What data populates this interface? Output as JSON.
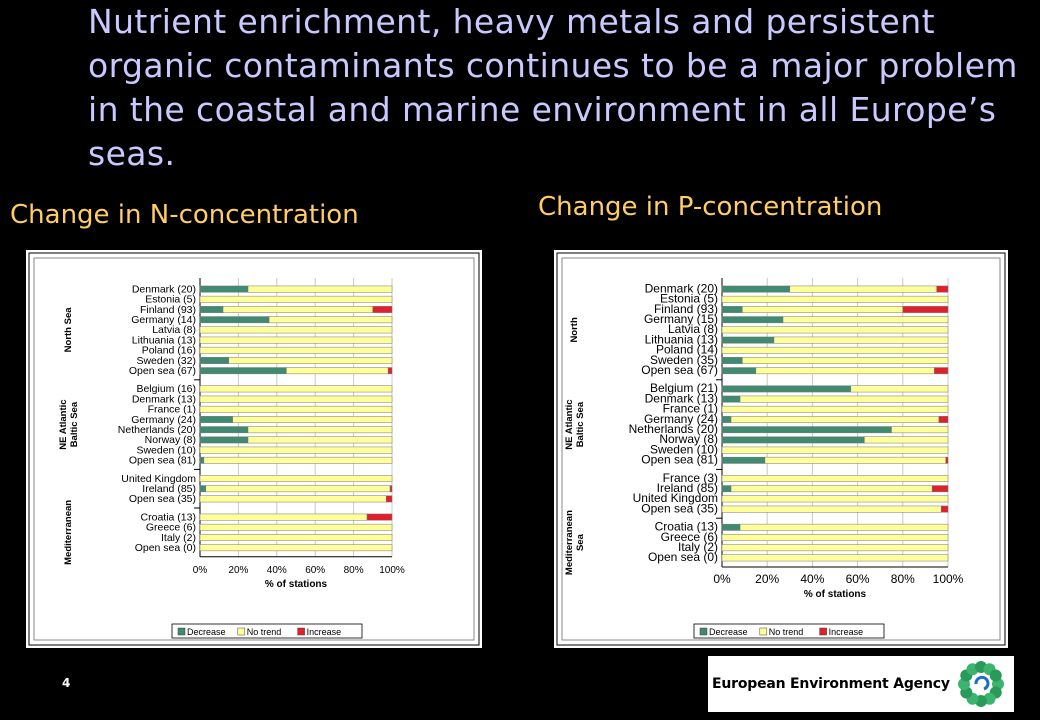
{
  "headline": "Nutrient enrichment, heavy metals and persistent organic contaminants continues to be a major problem in the coastal and marine environment in all Europe’s seas.",
  "subtitles": {
    "n": "Change in N-concentration",
    "p": "Change in P-concentration"
  },
  "page_number": "4",
  "logo": {
    "text": "European Environment Agency",
    "icon": "eea-star-logo-icon"
  },
  "colors": {
    "decrease": "#3f8a70",
    "no_trend": "#ffff99",
    "increase": "#e0202a",
    "title": "#c9c9ff",
    "subtitle": "#ffcc66"
  },
  "chart_data": [
    {
      "type": "bar",
      "orientation": "horizontal-stacked-100",
      "xlabel": "% of stations",
      "xticks": [
        "0%",
        "20%",
        "40%",
        "60%",
        "80%",
        "100%"
      ],
      "xlim": [
        0,
        100
      ],
      "legend": {
        "position": "bottom",
        "entries": [
          "Decrease",
          "No trend",
          "Increase"
        ]
      },
      "groups": [
        {
          "name": "North Sea",
          "rows": [
            {
              "label": "Denmark (20)",
              "decrease": 25,
              "no_trend": 75,
              "increase": 0
            },
            {
              "label": "Estonia (5)",
              "decrease": 0,
              "no_trend": 100,
              "increase": 0
            },
            {
              "label": "Finland (93)",
              "decrease": 12,
              "no_trend": 78,
              "increase": 10
            },
            {
              "label": "Germany (14)",
              "decrease": 36,
              "no_trend": 64,
              "increase": 0
            },
            {
              "label": "Latvia (8)",
              "decrease": 0,
              "no_trend": 100,
              "increase": 0
            },
            {
              "label": "Lithuania (13)",
              "decrease": 0,
              "no_trend": 100,
              "increase": 0
            },
            {
              "label": "Poland (16)",
              "decrease": 0,
              "no_trend": 100,
              "increase": 0
            },
            {
              "label": "Sweden (32)",
              "decrease": 15,
              "no_trend": 85,
              "increase": 0
            },
            {
              "label": "Open sea (67)",
              "decrease": 45,
              "no_trend": 53,
              "increase": 2
            }
          ]
        },
        {
          "name": "NE Atlantic Baltic Sea",
          "rows": [
            {
              "label": "Belgium (16)",
              "decrease": 0,
              "no_trend": 100,
              "increase": 0
            },
            {
              "label": "Denmark (13)",
              "decrease": 0,
              "no_trend": 100,
              "increase": 0
            },
            {
              "label": "France (1)",
              "decrease": 0,
              "no_trend": 100,
              "increase": 0
            },
            {
              "label": "Germany (24)",
              "decrease": 17,
              "no_trend": 83,
              "increase": 0
            },
            {
              "label": "Netherlands (20)",
              "decrease": 25,
              "no_trend": 75,
              "increase": 0
            },
            {
              "label": "Norway (8)",
              "decrease": 25,
              "no_trend": 75,
              "increase": 0
            },
            {
              "label": "Sweden (10)",
              "decrease": 0,
              "no_trend": 100,
              "increase": 0
            },
            {
              "label": "Open sea (81)",
              "decrease": 2,
              "no_trend": 98,
              "increase": 0
            }
          ]
        },
        {
          "name": "",
          "rows": [
            {
              "label": "United Kingdom",
              "decrease": 0,
              "no_trend": 100,
              "increase": 0
            },
            {
              "label": "Ireland (85)",
              "decrease": 3,
              "no_trend": 96,
              "increase": 1
            },
            {
              "label": "Open sea (35)",
              "decrease": 0,
              "no_trend": 97,
              "increase": 3
            }
          ]
        },
        {
          "name": "Mediterranean",
          "rows": [
            {
              "label": "Croatia (13)",
              "decrease": 0,
              "no_trend": 87,
              "increase": 13
            },
            {
              "label": "Greece (6)",
              "decrease": 0,
              "no_trend": 100,
              "increase": 0
            },
            {
              "label": "Italy (2)",
              "decrease": 0,
              "no_trend": 100,
              "increase": 0
            },
            {
              "label": "Open sea (0)",
              "decrease": 0,
              "no_trend": 100,
              "increase": 0
            }
          ]
        }
      ]
    },
    {
      "type": "bar",
      "orientation": "horizontal-stacked-100",
      "xlabel": "% of stations",
      "xticks": [
        "0%",
        "20%",
        "40%",
        "60%",
        "80%",
        "100%"
      ],
      "xlim": [
        0,
        100
      ],
      "legend": {
        "position": "bottom",
        "entries": [
          "Decrease",
          "No trend",
          "Increase"
        ]
      },
      "groups": [
        {
          "name": "North",
          "rows": [
            {
              "label": "Denmark (20)",
              "decrease": 30,
              "no_trend": 65,
              "increase": 5
            },
            {
              "label": "Estonia (5)",
              "decrease": 0,
              "no_trend": 100,
              "increase": 0
            },
            {
              "label": "Finland (93)",
              "decrease": 9,
              "no_trend": 71,
              "increase": 20
            },
            {
              "label": "Germany (15)",
              "decrease": 27,
              "no_trend": 73,
              "increase": 0
            },
            {
              "label": "Latvia (8)",
              "decrease": 0,
              "no_trend": 100,
              "increase": 0
            },
            {
              "label": "Lithuania (13)",
              "decrease": 23,
              "no_trend": 77,
              "increase": 0
            },
            {
              "label": "Poland (14)",
              "decrease": 0,
              "no_trend": 100,
              "increase": 0
            },
            {
              "label": "Sweden (35)",
              "decrease": 9,
              "no_trend": 91,
              "increase": 0
            },
            {
              "label": "Open sea (67)",
              "decrease": 15,
              "no_trend": 79,
              "increase": 6
            }
          ]
        },
        {
          "name": "NE Atlantic Baltic Sea",
          "rows": [
            {
              "label": "Belgium (21)",
              "decrease": 57,
              "no_trend": 43,
              "increase": 0
            },
            {
              "label": "Denmark (13)",
              "decrease": 8,
              "no_trend": 92,
              "increase": 0
            },
            {
              "label": "France (1)",
              "decrease": 0,
              "no_trend": 100,
              "increase": 0
            },
            {
              "label": "Germany (24)",
              "decrease": 4,
              "no_trend": 92,
              "increase": 4
            },
            {
              "label": "Netherlands (20)",
              "decrease": 75,
              "no_trend": 25,
              "increase": 0
            },
            {
              "label": "Norway (8)",
              "decrease": 63,
              "no_trend": 37,
              "increase": 0
            },
            {
              "label": "Sweden (10)",
              "decrease": 0,
              "no_trend": 100,
              "increase": 0
            },
            {
              "label": "Open sea (81)",
              "decrease": 19,
              "no_trend": 80,
              "increase": 1
            }
          ]
        },
        {
          "name": "",
          "rows": [
            {
              "label": "France (3)",
              "decrease": 0,
              "no_trend": 100,
              "increase": 0
            },
            {
              "label": "Ireland (85)",
              "decrease": 4,
              "no_trend": 89,
              "increase": 7
            },
            {
              "label": "United Kingdom",
              "decrease": 0,
              "no_trend": 100,
              "increase": 0
            },
            {
              "label": "Open sea (35)",
              "decrease": 0,
              "no_trend": 97,
              "increase": 3
            }
          ]
        },
        {
          "name": "Mediterranean Sea",
          "rows": [
            {
              "label": "Croatia (13)",
              "decrease": 8,
              "no_trend": 92,
              "increase": 0
            },
            {
              "label": "Greece (6)",
              "decrease": 0,
              "no_trend": 100,
              "increase": 0
            },
            {
              "label": "Italy (2)",
              "decrease": 0,
              "no_trend": 100,
              "increase": 0
            },
            {
              "label": "Open sea (0)",
              "decrease": 0,
              "no_trend": 100,
              "increase": 0
            }
          ]
        }
      ]
    }
  ]
}
